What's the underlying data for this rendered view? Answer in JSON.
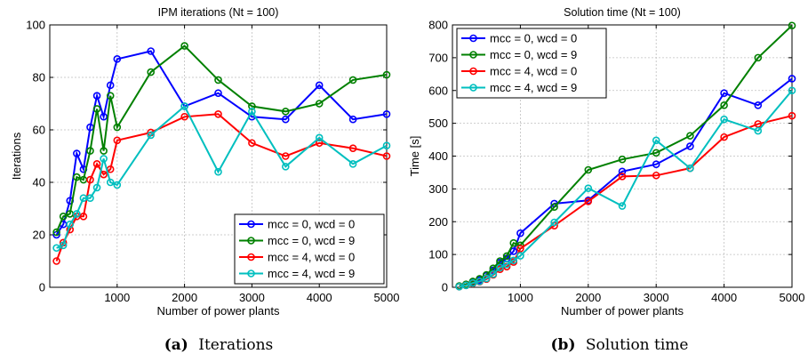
{
  "colors": {
    "series": [
      "#0000ff",
      "#008000",
      "#ff0000",
      "#00bfbf"
    ],
    "axis": "#000000",
    "grid": "#bfbfbf"
  },
  "captions": [
    {
      "tag": "(a)",
      "text": "Iterations"
    },
    {
      "tag": "(b)",
      "text": "Solution time"
    }
  ],
  "chart_data": [
    {
      "type": "line",
      "title": "IPM iterations (Nt = 100)",
      "xlabel": "Number of power plants",
      "ylabel": "Iterations",
      "xlim": [
        0,
        5000
      ],
      "ylim": [
        0,
        100
      ],
      "xticks": [
        1000,
        2000,
        3000,
        4000,
        5000
      ],
      "yticks": [
        0,
        20,
        40,
        60,
        80,
        100
      ],
      "grid": true,
      "legend_position": "bottom-right",
      "series": [
        {
          "name": "mcc = 0, wcd = 0",
          "x": [
            100,
            200,
            300,
            400,
            500,
            600,
            700,
            800,
            900,
            1000,
            1500,
            2000,
            2500,
            3000,
            3500,
            4000,
            4500,
            5000
          ],
          "y": [
            20,
            24,
            33,
            51,
            45,
            61,
            73,
            65,
            77,
            87,
            90,
            69,
            74,
            65,
            64,
            77,
            64,
            66
          ]
        },
        {
          "name": "mcc = 0, wcd = 9",
          "x": [
            100,
            200,
            300,
            400,
            500,
            600,
            700,
            800,
            900,
            1000,
            1500,
            2000,
            2500,
            3000,
            3500,
            4000,
            4500,
            5000
          ],
          "y": [
            21,
            27,
            28,
            42,
            41,
            52,
            68,
            52,
            73,
            61,
            82,
            92,
            79,
            69,
            67,
            70,
            79,
            81
          ]
        },
        {
          "name": "mcc = 4, wcd = 0",
          "x": [
            100,
            200,
            300,
            400,
            500,
            600,
            700,
            800,
            900,
            1000,
            1500,
            2000,
            2500,
            3000,
            3500,
            4000,
            4500,
            5000
          ],
          "y": [
            10,
            17,
            22,
            27,
            27,
            41,
            47,
            43,
            45,
            56,
            59,
            65,
            66,
            55,
            50,
            55,
            53,
            50
          ]
        },
        {
          "name": "mcc = 4, wcd = 9",
          "x": [
            100,
            200,
            300,
            400,
            500,
            600,
            700,
            800,
            900,
            1000,
            1500,
            2000,
            2500,
            3000,
            3500,
            4000,
            4500,
            5000
          ],
          "y": [
            15,
            16,
            24,
            28,
            34,
            34,
            38,
            49,
            40,
            39,
            58,
            69,
            44,
            67,
            46,
            57,
            47,
            54
          ]
        }
      ]
    },
    {
      "type": "line",
      "title": "Solution time (Nt = 100)",
      "xlabel": "Number of power plants",
      "ylabel": "Time [s]",
      "xlim": [
        0,
        5000
      ],
      "ylim": [
        0,
        800
      ],
      "xticks": [
        1000,
        2000,
        3000,
        4000,
        5000
      ],
      "yticks": [
        0,
        100,
        200,
        300,
        400,
        500,
        600,
        700,
        800
      ],
      "grid": true,
      "legend_position": "top-left",
      "series": [
        {
          "name": "mcc = 0, wcd = 0",
          "x": [
            100,
            200,
            300,
            400,
            500,
            600,
            700,
            800,
            900,
            1000,
            1500,
            2000,
            2500,
            3000,
            3500,
            4000,
            4500,
            5000
          ],
          "y": [
            3,
            8,
            15,
            22,
            35,
            52,
            75,
            88,
            110,
            165,
            255,
            265,
            353,
            375,
            430,
            592,
            555,
            636
          ]
        },
        {
          "name": "mcc = 0, wcd = 9",
          "x": [
            100,
            200,
            300,
            400,
            500,
            600,
            700,
            800,
            900,
            1000,
            1500,
            2000,
            2500,
            3000,
            3500,
            4000,
            4500,
            5000
          ],
          "y": [
            4,
            9,
            18,
            26,
            38,
            58,
            80,
            95,
            135,
            128,
            245,
            358,
            390,
            410,
            462,
            555,
            700,
            798
          ]
        },
        {
          "name": "mcc = 4, wcd = 0",
          "x": [
            100,
            200,
            300,
            400,
            500,
            600,
            700,
            800,
            900,
            1000,
            1500,
            2000,
            2500,
            3000,
            3500,
            4000,
            4500,
            5000
          ],
          "y": [
            2,
            6,
            12,
            17,
            25,
            38,
            55,
            63,
            77,
            118,
            188,
            262,
            338,
            341,
            363,
            458,
            498,
            523
          ]
        },
        {
          "name": "mcc = 4, wcd = 9",
          "x": [
            100,
            200,
            300,
            400,
            500,
            600,
            700,
            800,
            900,
            1000,
            1500,
            2000,
            2500,
            3000,
            3500,
            4000,
            4500,
            5000
          ],
          "y": [
            2,
            6,
            13,
            18,
            27,
            40,
            60,
            70,
            82,
            96,
            198,
            302,
            248,
            448,
            363,
            512,
            477,
            600
          ]
        }
      ]
    }
  ]
}
